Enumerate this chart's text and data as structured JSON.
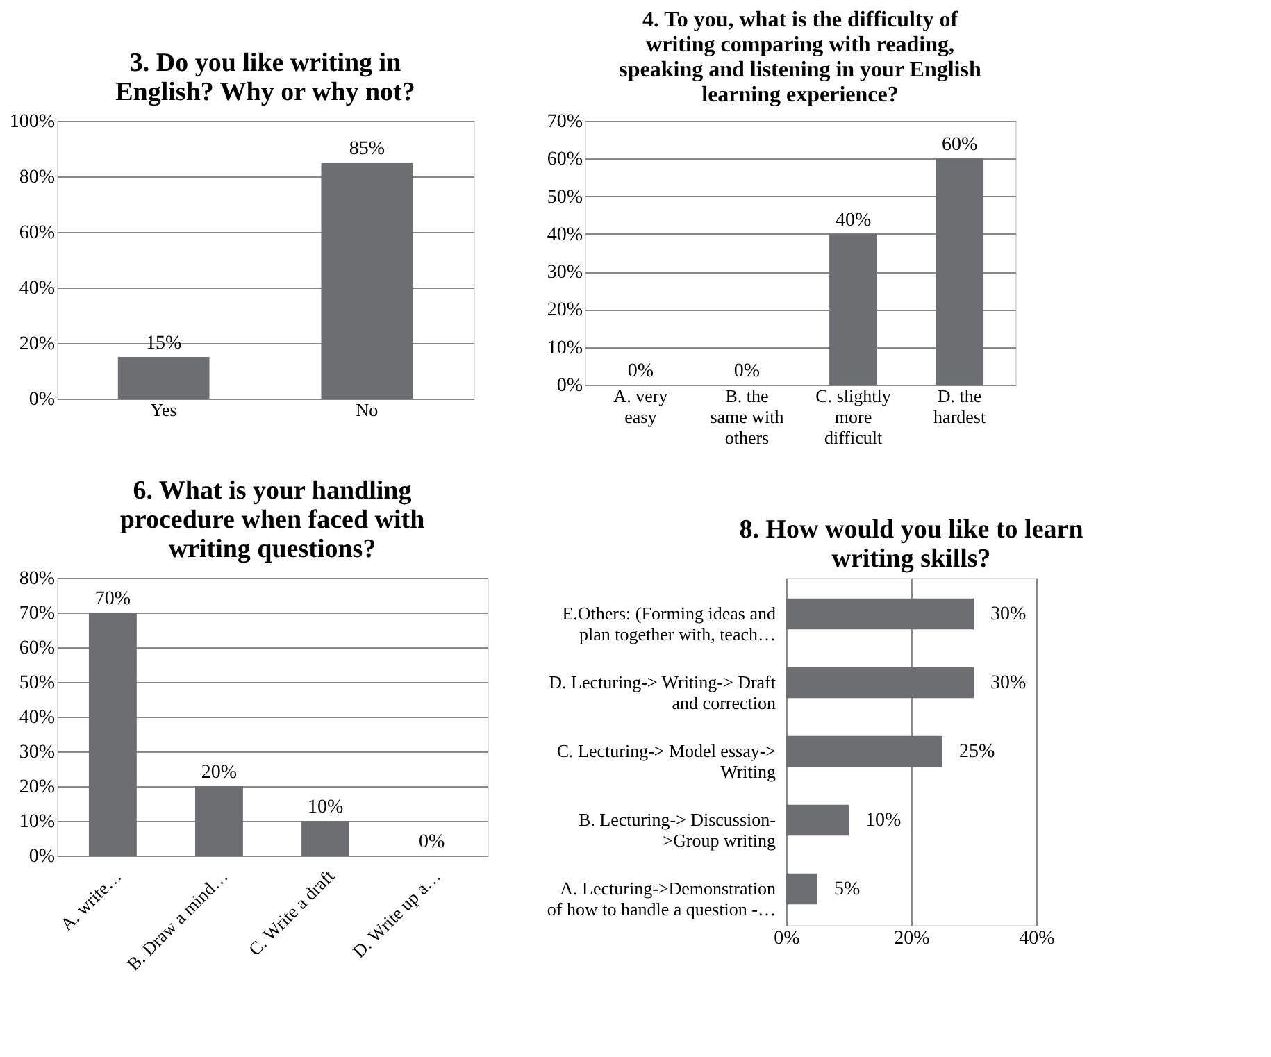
{
  "chart_data": [
    {
      "type": "bar",
      "title": "3. Do you like writing in\nEnglish? Why or why not?",
      "categories": [
        "Yes",
        "No"
      ],
      "values": [
        15,
        85
      ],
      "value_labels": [
        "15%",
        "85%"
      ],
      "color": "#6d6e71",
      "ylim": [
        0,
        100
      ],
      "yticks": [
        {
          "value": 0,
          "label": "0%"
        },
        {
          "value": 20,
          "label": "20%"
        },
        {
          "value": 40,
          "label": "40%"
        },
        {
          "value": 60,
          "label": "60%"
        },
        {
          "value": 80,
          "label": "80%"
        },
        {
          "value": 100,
          "label": "100%"
        }
      ],
      "grid": "y"
    },
    {
      "type": "bar",
      "title": "4.  To you, what is the difficulty of\nwriting comparing with reading,\nspeaking and listening in your English\nlearning experience?",
      "categories": [
        "A.     very\neasy",
        "B. the\nsame with\nothers",
        "C.  slightly\nmore\ndifficult",
        "D. the\nhardest"
      ],
      "values": [
        0,
        0,
        40,
        60
      ],
      "value_labels": [
        "0%",
        "0%",
        "40%",
        "60%"
      ],
      "color": "#6d6e71",
      "ylim": [
        0,
        70
      ],
      "yticks": [
        {
          "value": 0,
          "label": "0%"
        },
        {
          "value": 10,
          "label": "10%"
        },
        {
          "value": 20,
          "label": "20%"
        },
        {
          "value": 30,
          "label": "30%"
        },
        {
          "value": 40,
          "label": "40%"
        },
        {
          "value": 50,
          "label": "50%"
        },
        {
          "value": 60,
          "label": "60%"
        },
        {
          "value": 70,
          "label": "70%"
        }
      ],
      "grid": "y"
    },
    {
      "type": "bar",
      "title": "6. What is your handling\nprocedure when faced with\nwriting questions?",
      "categories": [
        "A. write…",
        "B. Draw a mind…",
        "C. Write a draft",
        "D. Write up a…"
      ],
      "values": [
        70,
        20,
        10,
        0
      ],
      "value_labels": [
        "70%",
        "20%",
        "10%",
        "0%"
      ],
      "color": "#6d6e71",
      "ylim": [
        0,
        80
      ],
      "yticks": [
        {
          "value": 0,
          "label": "0%"
        },
        {
          "value": 10,
          "label": "10%"
        },
        {
          "value": 20,
          "label": "20%"
        },
        {
          "value": 30,
          "label": "30%"
        },
        {
          "value": 40,
          "label": "40%"
        },
        {
          "value": 50,
          "label": "50%"
        },
        {
          "value": 60,
          "label": "60%"
        },
        {
          "value": 70,
          "label": "70%"
        },
        {
          "value": 80,
          "label": "80%"
        }
      ],
      "grid": "y"
    },
    {
      "type": "bar",
      "orientation": "horizontal",
      "title": "8. How would you like to learn\nwriting skills?",
      "categories": [
        "E.Others: (Forming ideas and\nplan together with, teach…",
        "D. Lecturing-> Writing-> Draft\nand correction",
        "C. Lecturing-> Model essay->\nWriting",
        "B.  Lecturing-> Discussion-\n>Group writing",
        "A. Lecturing->Demonstration\nof how to handle a question -…"
      ],
      "values": [
        30,
        30,
        25,
        10,
        5
      ],
      "value_labels": [
        "30%",
        "30%",
        "25%",
        "10%",
        "5%"
      ],
      "color": "#6d6e71",
      "xlim": [
        0,
        40
      ],
      "xticks": [
        {
          "value": 0,
          "label": "0%"
        },
        {
          "value": 20,
          "label": "20%"
        },
        {
          "value": 40,
          "label": "40%"
        }
      ],
      "grid": "x"
    }
  ]
}
